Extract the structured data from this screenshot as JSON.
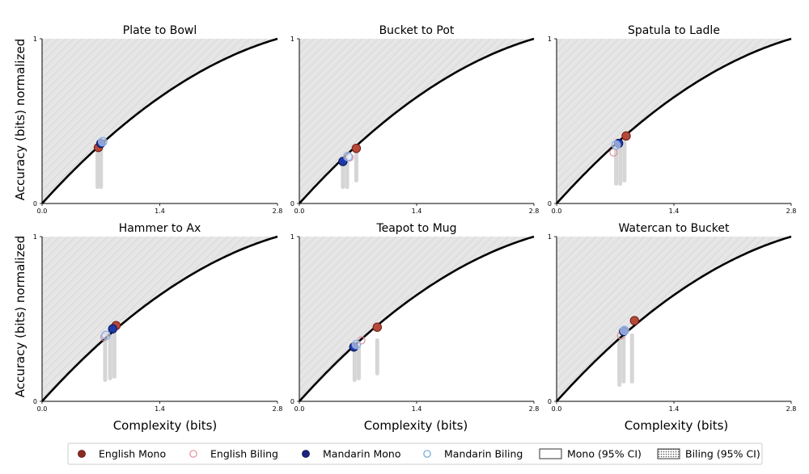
{
  "figure": {
    "ylabel": "Accuracy (bits) normalized",
    "xlabel": "Complexity (bits)"
  },
  "legend": {
    "position": "bottom",
    "items": [
      {
        "label": "English Mono",
        "marker": "filled-circle",
        "color": "#8b2a20"
      },
      {
        "label": "English Biling",
        "marker": "open-circle",
        "color": "#e0909a"
      },
      {
        "label": "Mandarin Mono",
        "marker": "filled-circle",
        "color": "#1a237e"
      },
      {
        "label": "Mandarin Biling",
        "marker": "open-circle",
        "color": "#6fa8dc"
      },
      {
        "label": "Mono (95% CI)",
        "marker": "open-box",
        "color": "#000000"
      },
      {
        "label": "Biling (95% CI)",
        "marker": "hatched-box",
        "color": "#000000"
      }
    ]
  },
  "colors": {
    "english_mono": "#b5493a",
    "english_mono_edge": "#6e1a12",
    "english_biling": "#e0909a",
    "mandarin_mono": "#1f3aa8",
    "mandarin_mono_edge": "#0b1450",
    "mandarin_biling": "#8aaee6",
    "mandarin_biling_fill": "#dfe8f7",
    "region": "#e4e4e4",
    "ci": "#d6d6d6",
    "curve": "#000000"
  },
  "chart_data": [
    {
      "type": "scatter",
      "title": "Plate to Bowl",
      "xlim": [
        0,
        2.8
      ],
      "ylim": [
        0,
        1
      ],
      "xticks": [
        "0.0",
        "1.4",
        "2.8"
      ],
      "yticks": [
        "0",
        "1"
      ],
      "english_mono": [
        0.67,
        0.34
      ],
      "english_biling": [
        0.7,
        0.36
      ],
      "mandarin_mono": [
        0.7,
        0.365
      ],
      "mandarin_biling": [
        0.72,
        0.375
      ],
      "ci_bars": [
        [
          0.66,
          0.1,
          0.33
        ],
        [
          0.7,
          0.1,
          0.33
        ]
      ]
    },
    {
      "type": "scatter",
      "title": "Bucket to Pot",
      "xlim": [
        0,
        2.8
      ],
      "ylim": [
        0,
        1
      ],
      "xticks": [
        "0.0",
        "1.4",
        "2.8"
      ],
      "yticks": [
        "0",
        "1"
      ],
      "english_mono": [
        0.68,
        0.335
      ],
      "english_biling": [
        0.6,
        0.28
      ],
      "mandarin_mono": [
        0.52,
        0.255
      ],
      "mandarin_biling": [
        0.58,
        0.285
      ],
      "ci_bars": [
        [
          0.52,
          0.1,
          0.25
        ],
        [
          0.57,
          0.1,
          0.27
        ],
        [
          0.68,
          0.14,
          0.31
        ]
      ]
    },
    {
      "type": "scatter",
      "title": "Spatula to Ladle",
      "xlim": [
        0,
        2.8
      ],
      "ylim": [
        0,
        1
      ],
      "xticks": [
        "0.0",
        "1.4",
        "2.8"
      ],
      "yticks": [
        "0",
        "1"
      ],
      "english_mono": [
        0.83,
        0.41
      ],
      "english_biling": [
        0.68,
        0.31
      ],
      "mandarin_mono": [
        0.74,
        0.365
      ],
      "mandarin_biling": [
        0.71,
        0.355
      ],
      "ci_bars": [
        [
          0.71,
          0.12,
          0.34
        ],
        [
          0.76,
          0.12,
          0.36
        ],
        [
          0.81,
          0.14,
          0.39
        ]
      ]
    },
    {
      "type": "scatter",
      "title": "Hammer to Ax",
      "xlim": [
        0,
        2.8
      ],
      "ylim": [
        0,
        1
      ],
      "xticks": [
        "0.0",
        "1.4",
        "2.8"
      ],
      "yticks": [
        "0",
        "1"
      ],
      "english_mono": [
        0.88,
        0.46
      ],
      "english_biling": [
        0.74,
        0.39
      ],
      "mandarin_mono": [
        0.84,
        0.44
      ],
      "mandarin_biling": [
        0.76,
        0.4
      ],
      "ci_bars": [
        [
          0.75,
          0.13,
          0.38
        ],
        [
          0.81,
          0.14,
          0.41
        ],
        [
          0.86,
          0.15,
          0.42
        ]
      ]
    },
    {
      "type": "scatter",
      "title": "Teapot to Mug",
      "xlim": [
        0,
        2.8
      ],
      "ylim": [
        0,
        1
      ],
      "xticks": [
        "0.0",
        "1.4",
        "2.8"
      ],
      "yticks": [
        "0",
        "1"
      ],
      "english_mono": [
        0.93,
        0.45
      ],
      "english_biling": [
        0.74,
        0.37
      ],
      "mandarin_mono": [
        0.65,
        0.33
      ],
      "mandarin_biling": [
        0.68,
        0.345
      ],
      "ci_bars": [
        [
          0.66,
          0.13,
          0.33
        ],
        [
          0.71,
          0.14,
          0.34
        ],
        [
          0.93,
          0.17,
          0.37
        ]
      ]
    },
    {
      "type": "scatter",
      "title": "Watercan to Bucket",
      "xlim": [
        0,
        2.8
      ],
      "ylim": [
        0,
        1
      ],
      "xticks": [
        "0.0",
        "1.4",
        "2.8"
      ],
      "yticks": [
        "0",
        "1"
      ],
      "english_mono": [
        0.93,
        0.49
      ],
      "english_biling": [
        0.77,
        0.4
      ],
      "mandarin_mono": [
        0.8,
        0.425
      ],
      "mandarin_biling": [
        0.81,
        0.43
      ],
      "ci_bars": [
        [
          0.75,
          0.1,
          0.37
        ],
        [
          0.8,
          0.12,
          0.39
        ],
        [
          0.9,
          0.12,
          0.4
        ]
      ]
    }
  ]
}
